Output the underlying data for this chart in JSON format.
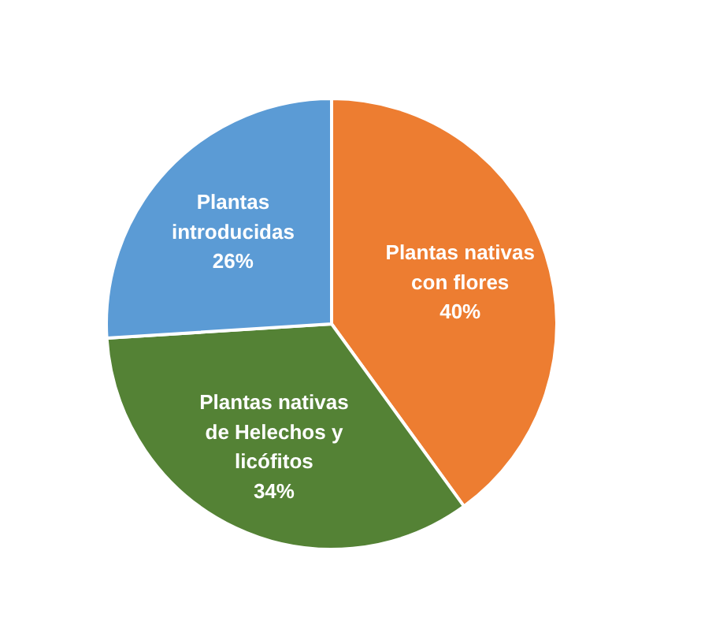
{
  "chart_data": {
    "type": "pie",
    "categories": [
      "Plantas nativas con flores",
      "Plantas nativas de Helechos y licófitos",
      "Plantas introducidas"
    ],
    "values": [
      40,
      34,
      26
    ],
    "colors": [
      "#ed7d31",
      "#548235",
      "#5b9bd5"
    ],
    "value_labels": [
      "40%",
      "34%",
      "26%"
    ]
  }
}
